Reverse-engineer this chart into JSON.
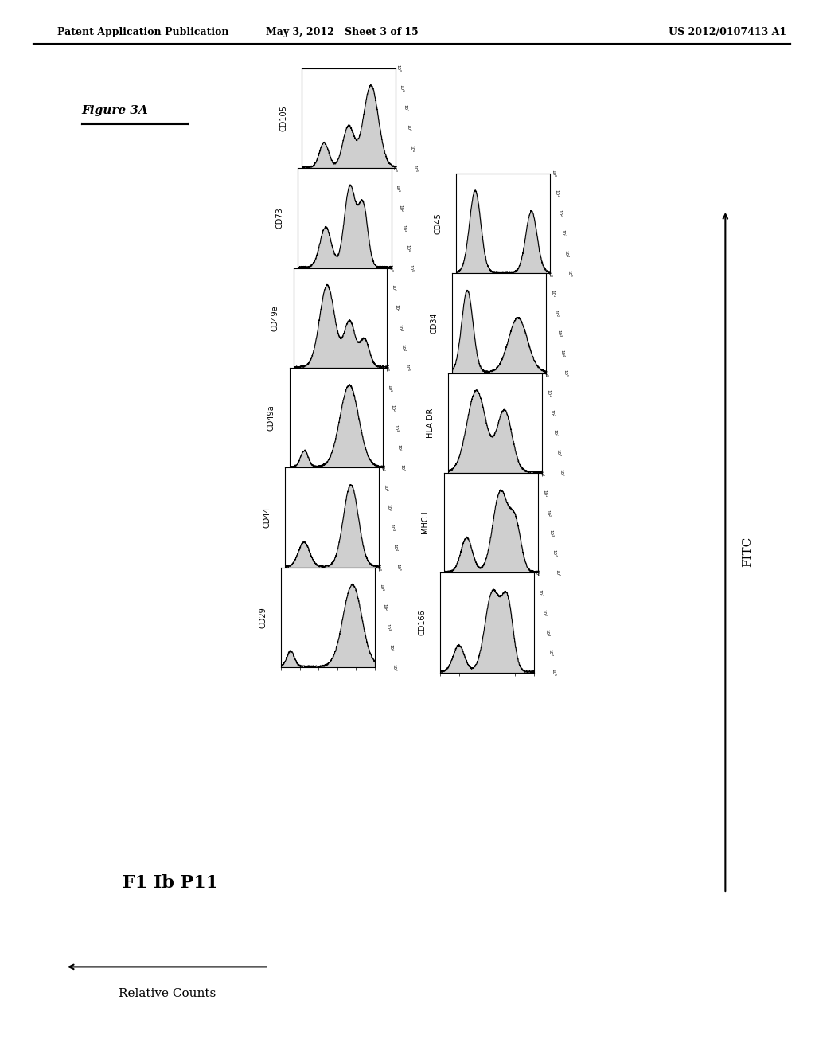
{
  "header_left": "Patent Application Publication",
  "header_center": "May 3, 2012   Sheet 3 of 15",
  "header_right": "US 2012/0107413 A1",
  "figure_label": "Figure 3A",
  "label_left": "F1 Ib P11",
  "xlabel_bottom": "Relative Counts",
  "ylabel_right": "FITC",
  "row1_panels": [
    "CD105",
    "CD73",
    "CD49e",
    "CD49a",
    "CD44",
    "CD29"
  ],
  "row2_panels": [
    "CD45",
    "CD34",
    "HLA DR",
    "MHC I",
    "CD166"
  ],
  "background": "#ffffff",
  "panel_bg": "#ffffff",
  "line_color": "#000000",
  "fill_color": "#cccccc",
  "tick_color": "#000000"
}
